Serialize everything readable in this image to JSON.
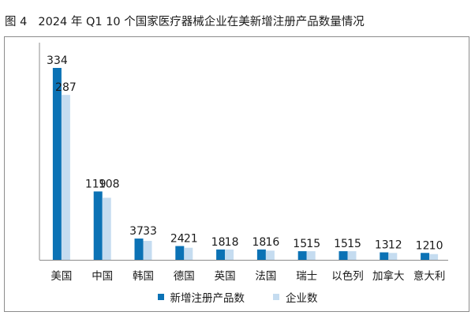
{
  "caption": {
    "figure_number": "图 4",
    "title": "2024 年 Q1 10 个国家医疗器械企业在美新增注册产品数量情况"
  },
  "colors": {
    "series_1": "#0b72b5",
    "series_2": "#c5dcf0",
    "axis": "#8c8c8c",
    "text": "#1a1a1a"
  },
  "chart_data": {
    "type": "bar",
    "title": "2024 年 Q1 10 个国家医疗器械企业在美新增注册产品数量情况",
    "categories": [
      "美国",
      "中国",
      "韩国",
      "德国",
      "英国",
      "法国",
      "瑞士",
      "以色列",
      "加拿大",
      "意大利"
    ],
    "series": [
      {
        "name": "新增注册产品数",
        "values": [
          334,
          119,
          37,
          24,
          18,
          18,
          15,
          15,
          13,
          12
        ]
      },
      {
        "name": "企业数",
        "values": [
          287,
          108,
          33,
          21,
          18,
          16,
          15,
          15,
          12,
          10
        ]
      }
    ],
    "xlabel": "",
    "ylabel": "",
    "ylim": [
      0,
      334
    ],
    "grid": false,
    "legend_position": "bottom",
    "data_labels": true
  }
}
